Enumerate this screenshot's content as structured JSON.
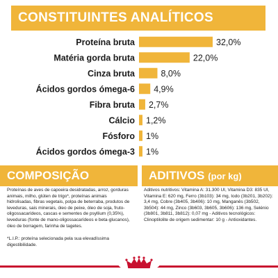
{
  "analytics": {
    "title": "CONSTITUINTES ANALÍTICOS"
  },
  "chart_data": {
    "type": "bar",
    "orientation": "horizontal",
    "title": "CONSTITUINTES ANALÍTICOS",
    "categories": [
      "Proteína bruta",
      "Matéria gorda bruta",
      "Cinza bruta",
      "Ácidos gordos ómega-6",
      "Fibra bruta",
      "Cálcio",
      "Fósforo",
      "Ácidos gordos ómega-3"
    ],
    "values": [
      32.0,
      22.0,
      8.0,
      4.9,
      2.7,
      1.2,
      1,
      1
    ],
    "value_labels": [
      "32,0%",
      "22,0%",
      "8,0%",
      "4,9%",
      "2,7%",
      "1,2%",
      "1%",
      "1%"
    ],
    "bar_color": "#f0b53a",
    "grid": false,
    "legend": "none"
  },
  "composition": {
    "title": "COMPOSIÇÃO",
    "text": "Proteínas de aves de capoeira desidratadas, arroz, gorduras animais, milho, glúten de trigo*, proteínas animais hidrolisadas, fibras vegetais, polpa de beterraba, produtos de leveduras, sais minerais, óleo de peixe, óleo de soja, fruto-oligossacarídeos, cascas e sementes de psyllium (0,35%), leveduras (fonte de mano-oligossacarídeos e beta-glucanos), óleo de borragem, farinha de tagetes.",
    "note": "*L.I.P.: proteína selecionada pela sua elevadíssima digestibilidade."
  },
  "additives": {
    "title": "ADITIVOS",
    "unit": "(por kg)",
    "text": "Aditivos nutritivos: Vitamina A: 31.300 UI, Vitamina D3: 835 UI, Vitamina E: 620 mg, Ferro (3b103): 34 mg, Iodo (3b201, 3b202): 3,4 mg, Cobre (3b405, 3b406): 10 mg, Manganês (3b502, 3b504): 44 mg, Zinco (3b603, 3b605, 3b606): 136 mg, Selénio (3b801, 3b811, 3b812): 0,07 mg - Aditivos tecnológicos: Clinoptilolite de origem sedimentar: 10 g - Antioxidantes."
  },
  "brand": {
    "logo": "royal-canin-crown-logo",
    "accent": "#c8102e"
  }
}
